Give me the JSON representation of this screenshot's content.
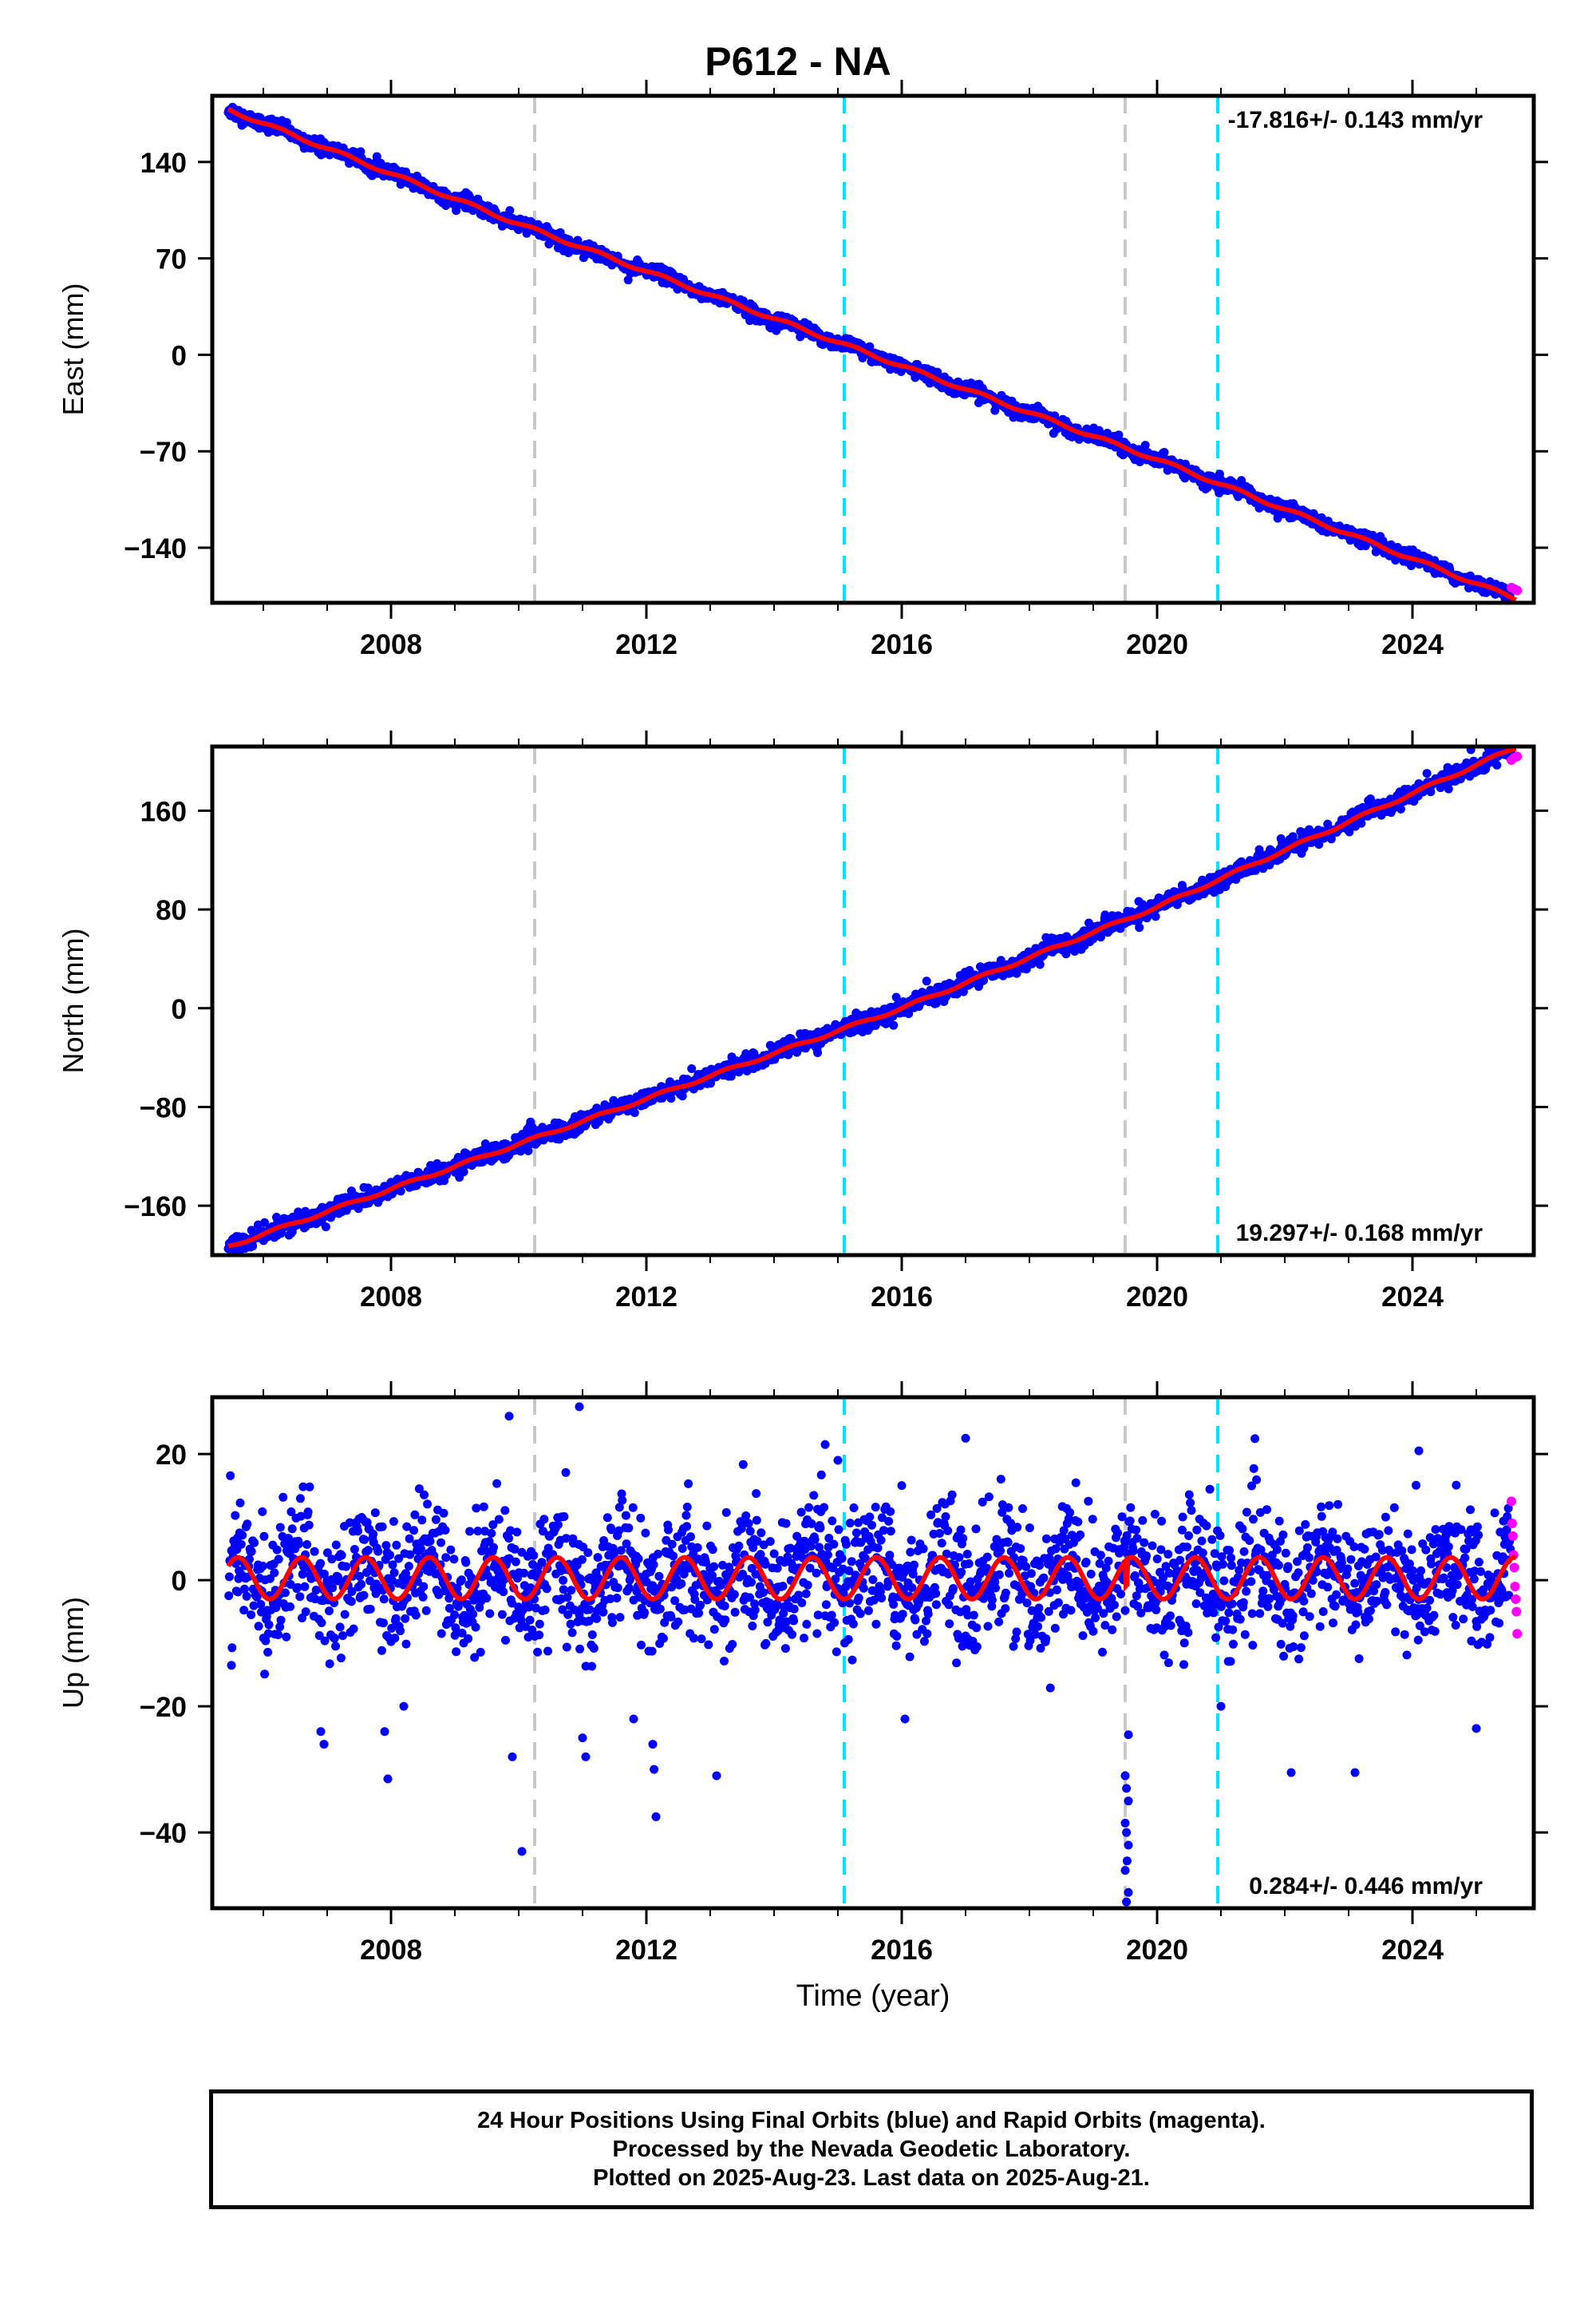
{
  "title": "P612 - NA",
  "xlabel": "Time (year)",
  "footer": {
    "line1": "24 Hour Positions Using Final Orbits (blue) and Rapid Orbits (magenta).",
    "line2": "Processed by the Nevada Geodetic Laboratory.",
    "line3": "Plotted on 2025-Aug-23. Last data on 2025-Aug-21."
  },
  "colors": {
    "final_orbits": "#0000ff",
    "rapid_orbits": "#ff00ff",
    "model_fit": "#ff0000",
    "equipment_change": "#c8c8c8",
    "earthquake": "#00e5ff"
  },
  "chart_data": [
    {
      "type": "scatter",
      "component": "east",
      "ylabel": "East (mm)",
      "rate_label": "-17.816+/- 0.143 mm/yr",
      "rate_position": "top-right",
      "xlim": [
        2005.2,
        2025.9
      ],
      "ylim": [
        -180,
        188
      ],
      "yticks": [
        -140,
        -70,
        0,
        70,
        140
      ],
      "xticks": [
        2008,
        2012,
        2016,
        2020,
        2024
      ],
      "grid": false,
      "trend": {
        "y_2006": 168,
        "y_2010": 95,
        "y_2016": -8,
        "y_2020": -76,
        "y_2025": -166
      },
      "series": [
        {
          "name": "Final Orbits",
          "color": "#0000ff",
          "x_range": [
            2005.45,
            2025.55
          ],
          "noise_mm": 2.5
        },
        {
          "name": "Rapid Orbits",
          "color": "#ff00ff",
          "x_range": [
            2025.55,
            2025.64
          ],
          "values_mm": [
            -169,
            -170,
            -171
          ]
        }
      ],
      "vlines_equipment": [
        2010.25,
        2019.5
      ],
      "vlines_earthquake": [
        2015.1,
        2020.95
      ]
    },
    {
      "type": "scatter",
      "component": "north",
      "ylabel": "North (mm)",
      "rate_label": "19.297+/- 0.168 mm/yr",
      "rate_position": "bottom-right",
      "xlim": [
        2005.2,
        2025.9
      ],
      "ylim": [
        -200,
        212
      ],
      "yticks": [
        -160,
        -80,
        0,
        80,
        160
      ],
      "xticks": [
        2008,
        2012,
        2016,
        2020,
        2024
      ],
      "grid": false,
      "trend": {
        "y_2006": -183,
        "y_2010": -110,
        "y_2016": 0,
        "y_2020": 82,
        "y_2025": 197
      },
      "series": [
        {
          "name": "Final Orbits",
          "color": "#0000ff",
          "x_range": [
            2005.45,
            2025.55
          ],
          "noise_mm": 3.5
        },
        {
          "name": "Rapid Orbits",
          "color": "#ff00ff",
          "x_range": [
            2025.55,
            2025.64
          ],
          "values_mm": [
            201,
            203,
            204
          ]
        }
      ],
      "vlines_equipment": [
        2010.25,
        2019.5
      ],
      "vlines_earthquake": [
        2015.1,
        2020.95
      ]
    },
    {
      "type": "scatter",
      "component": "up",
      "ylabel": "Up (mm)",
      "rate_label": "0.284+/- 0.446 mm/yr",
      "rate_position": "bottom-right",
      "xlim": [
        2005.2,
        2025.9
      ],
      "ylim": [
        -52,
        29
      ],
      "yticks": [
        -40,
        -20,
        0,
        20
      ],
      "xticks": [
        2008,
        2012,
        2016,
        2020,
        2024
      ],
      "grid": false,
      "seasonal": {
        "amplitude_mm": 3.3,
        "period_years": 1.0,
        "mean_mm": 0.3
      },
      "series": [
        {
          "name": "Final Orbits",
          "color": "#0000ff",
          "x_range": [
            2005.45,
            2025.55
          ],
          "noise_mm": 5.0
        },
        {
          "name": "Rapid Orbits",
          "color": "#ff00ff",
          "x_range": [
            2025.55,
            2025.64
          ],
          "values_mm": [
            12.5,
            9,
            7,
            4,
            2,
            -1,
            -3,
            -5,
            -8.5
          ]
        }
      ],
      "outliers": [
        [
          2005.5,
          -13.5
        ],
        [
          2006.9,
          -24
        ],
        [
          2006.95,
          -26
        ],
        [
          2007.95,
          -31.5
        ],
        [
          2007.9,
          -24
        ],
        [
          2008.2,
          -20
        ],
        [
          2009.85,
          26
        ],
        [
          2009.9,
          -28
        ],
        [
          2010.05,
          -43
        ],
        [
          2010.95,
          27.5
        ],
        [
          2011.0,
          -25
        ],
        [
          2011.05,
          -28
        ],
        [
          2011.8,
          -22
        ],
        [
          2012.1,
          -26
        ],
        [
          2012.12,
          -30
        ],
        [
          2012.15,
          -37.5
        ],
        [
          2013.1,
          -31
        ],
        [
          2014.8,
          21.5
        ],
        [
          2015.0,
          19
        ],
        [
          2016.0,
          15
        ],
        [
          2016.05,
          -22
        ],
        [
          2017.0,
          22.5
        ],
        [
          2019.5,
          -31
        ],
        [
          2019.52,
          -33
        ],
        [
          2019.55,
          -35
        ],
        [
          2019.5,
          -38.5
        ],
        [
          2019.52,
          -40
        ],
        [
          2019.55,
          -42
        ],
        [
          2019.53,
          -44.5
        ],
        [
          2019.5,
          -46
        ],
        [
          2019.55,
          -49.5
        ],
        [
          2019.52,
          -51
        ],
        [
          2019.55,
          -24.5
        ],
        [
          2021.0,
          -20
        ],
        [
          2022.1,
          -30.5
        ],
        [
          2023.1,
          -30.5
        ],
        [
          2024.1,
          20.5
        ],
        [
          2025.0,
          -23.5
        ]
      ],
      "vlines_equipment": [
        2010.25,
        2019.5
      ],
      "vlines_earthquake": [
        2015.1,
        2020.95
      ]
    }
  ]
}
